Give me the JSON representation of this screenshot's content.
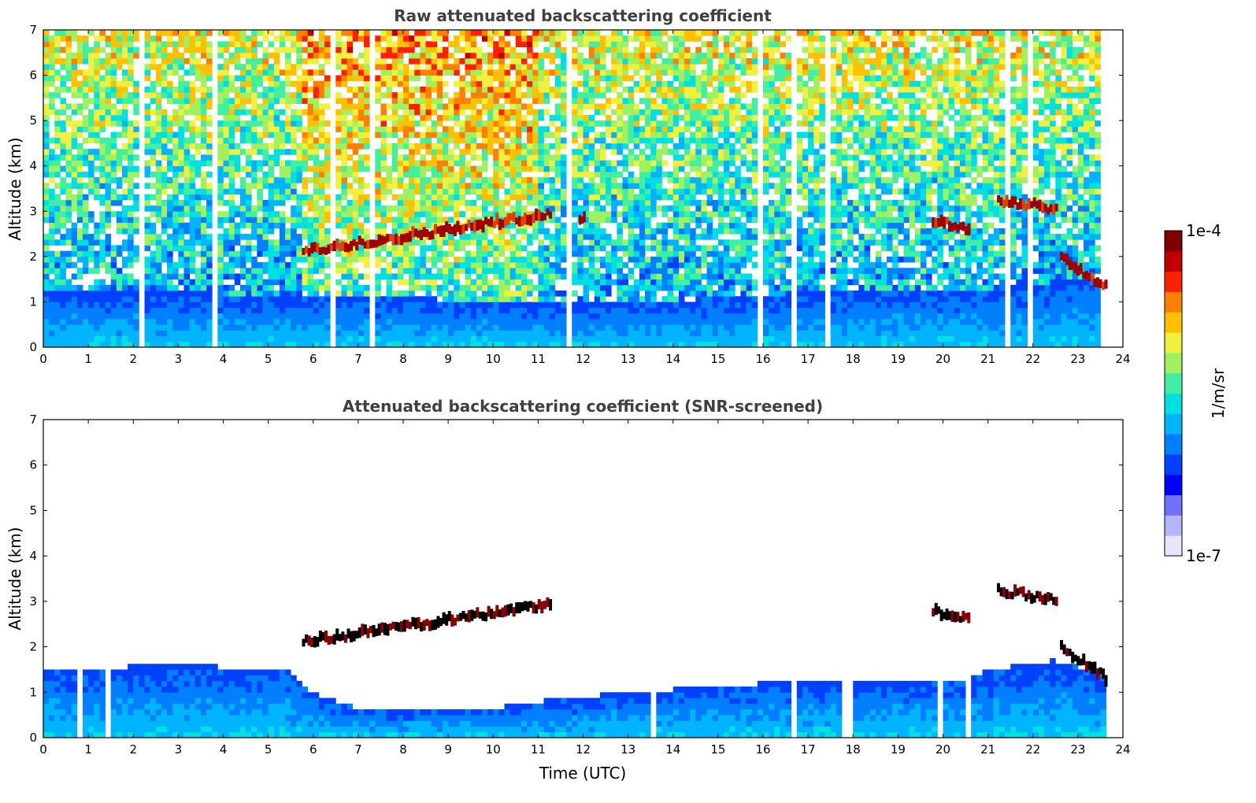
{
  "chart_data": [
    {
      "type": "heatmap",
      "title": "Raw attenuated backscattering coefficient",
      "xlabel": "",
      "ylabel": "Altitude (km)",
      "xlim": [
        0,
        24
      ],
      "ylim": [
        0,
        7
      ],
      "x_ticks": [
        "0",
        "1",
        "2",
        "3",
        "4",
        "5",
        "6",
        "7",
        "8",
        "9",
        "10",
        "11",
        "12",
        "13",
        "14",
        "15",
        "16",
        "17",
        "18",
        "19",
        "20",
        "21",
        "22",
        "23",
        "24"
      ],
      "y_ticks": [
        "0",
        "1",
        "2",
        "3",
        "4",
        "5",
        "6",
        "7"
      ],
      "data_end_hour": 23.65,
      "boundary_layer_top_km": [
        [
          0,
          1.2
        ],
        [
          3,
          1.2
        ],
        [
          6,
          1.15
        ],
        [
          8,
          1.1
        ],
        [
          10,
          1.0
        ],
        [
          14,
          1.0
        ],
        [
          18,
          1.3
        ],
        [
          21,
          1.3
        ],
        [
          23,
          1.5
        ]
      ],
      "cloud_layers": [
        {
          "t_start": 5.75,
          "t_end": 11.3,
          "alt_start_km": 2.1,
          "alt_end_km": 2.95
        },
        {
          "t_start": 11.9,
          "t_end": 12.05,
          "alt_start_km": 2.85,
          "alt_end_km": 2.85
        },
        {
          "t_start": 19.75,
          "t_end": 20.6,
          "alt_start_km": 2.8,
          "alt_end_km": 2.6
        },
        {
          "t_start": 21.2,
          "t_end": 22.55,
          "alt_start_km": 3.25,
          "alt_end_km": 3.05
        },
        {
          "t_start": 22.6,
          "t_end": 23.65,
          "alt_start_km": 2.0,
          "alt_end_km": 1.3
        }
      ],
      "high_noise_period": [
        5.8,
        11.0
      ]
    },
    {
      "type": "heatmap",
      "title": "Attenuated backscattering coefficient (SNR-screened)",
      "xlabel": "Time (UTC)",
      "ylabel": "Altitude (km)",
      "xlim": [
        0,
        24
      ],
      "ylim": [
        0,
        7
      ],
      "x_ticks": [
        "0",
        "1",
        "2",
        "3",
        "4",
        "5",
        "6",
        "7",
        "8",
        "9",
        "10",
        "11",
        "12",
        "13",
        "14",
        "15",
        "16",
        "17",
        "18",
        "19",
        "20",
        "21",
        "22",
        "23",
        "24"
      ],
      "y_ticks": [
        "0",
        "1",
        "2",
        "3",
        "4",
        "5",
        "6",
        "7"
      ],
      "data_end_hour": 23.65,
      "screened_layer_top_km": [
        [
          0,
          1.5
        ],
        [
          3,
          1.6
        ],
        [
          5.5,
          1.5
        ],
        [
          6,
          1.0
        ],
        [
          7,
          0.65
        ],
        [
          8,
          0.6
        ],
        [
          10,
          0.65
        ],
        [
          11,
          0.8
        ],
        [
          13,
          1.0
        ],
        [
          16,
          1.2
        ],
        [
          19,
          1.3
        ],
        [
          20.5,
          1.3
        ],
        [
          21,
          1.5
        ],
        [
          22.5,
          1.7
        ],
        [
          23.65,
          1.4
        ]
      ],
      "cloud_layers": [
        {
          "t_start": 5.75,
          "t_end": 11.3,
          "alt_start_km": 2.1,
          "alt_end_km": 2.95
        },
        {
          "t_start": 19.75,
          "t_end": 20.6,
          "alt_start_km": 2.8,
          "alt_end_km": 2.6
        },
        {
          "t_start": 21.2,
          "t_end": 22.55,
          "alt_start_km": 3.25,
          "alt_end_km": 3.05
        },
        {
          "t_start": 22.6,
          "t_end": 23.65,
          "alt_start_km": 2.0,
          "alt_end_km": 1.3
        }
      ]
    }
  ],
  "colorbar": {
    "min_label": "1e-7",
    "max_label": "1e-4",
    "unit_label": "1/m/sr",
    "scale": "log",
    "colors": [
      "#e6e6fa",
      "#b4b4ff",
      "#7070ff",
      "#0000ff",
      "#0040ff",
      "#0080ff",
      "#00b4ff",
      "#00e0e0",
      "#40f0a0",
      "#a0f060",
      "#f0f040",
      "#ffc000",
      "#ff8000",
      "#ff2000",
      "#c00000",
      "#800000"
    ]
  }
}
